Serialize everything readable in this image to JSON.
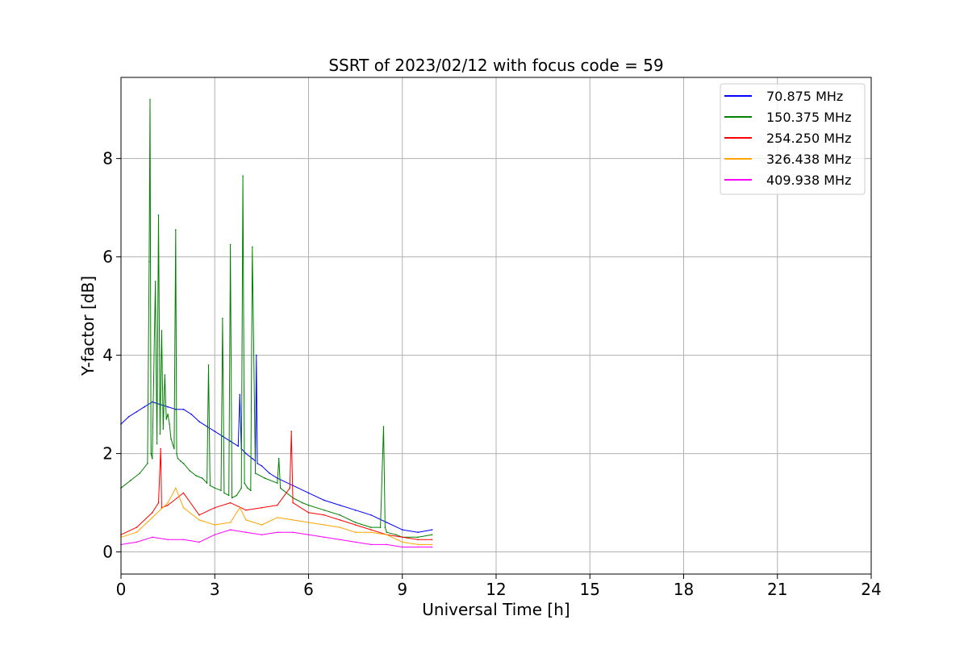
{
  "chart_data": {
    "type": "line",
    "title": "SSRT of 2023/02/12 with focus code = 59",
    "xlabel": "Universal Time [h]",
    "ylabel": "Y-factor [dB]",
    "xlim": [
      0,
      24
    ],
    "ylim": [
      -0.45,
      9.65
    ],
    "xticks": [
      0,
      3,
      6,
      9,
      12,
      15,
      18,
      21,
      24
    ],
    "yticks": [
      0,
      2,
      4,
      6,
      8
    ],
    "grid": true,
    "legend_position": "top-right",
    "series": [
      {
        "name": " 70.875 MHz",
        "color": "#0000ff",
        "x": [
          0,
          0.25,
          0.5,
          0.75,
          1.0,
          1.25,
          1.5,
          1.75,
          2.0,
          2.25,
          2.5,
          2.75,
          3.0,
          3.25,
          3.5,
          3.75,
          3.8,
          3.85,
          4.0,
          4.2,
          4.3,
          4.33,
          4.36,
          4.5,
          4.75,
          5.0,
          5.5,
          6.0,
          6.5,
          7.0,
          7.5,
          8.0,
          8.5,
          9.0,
          9.5,
          9.95
        ],
        "y": [
          2.6,
          2.75,
          2.85,
          2.95,
          3.05,
          3.0,
          2.95,
          2.9,
          2.9,
          2.8,
          2.65,
          2.55,
          2.45,
          2.35,
          2.25,
          2.15,
          3.2,
          2.1,
          2.0,
          1.9,
          1.85,
          4.0,
          1.8,
          1.75,
          1.6,
          1.5,
          1.35,
          1.2,
          1.05,
          0.95,
          0.85,
          0.75,
          0.6,
          0.45,
          0.4,
          0.45
        ]
      },
      {
        "name": "150.375 MHz",
        "color": "#008000",
        "x": [
          0,
          0.3,
          0.6,
          0.85,
          0.9,
          0.93,
          0.96,
          1.0,
          1.1,
          1.15,
          1.2,
          1.25,
          1.3,
          1.35,
          1.4,
          1.45,
          1.5,
          1.55,
          1.6,
          1.7,
          1.75,
          1.78,
          1.82,
          1.9,
          2.0,
          2.2,
          2.4,
          2.6,
          2.75,
          2.8,
          2.85,
          3.0,
          3.2,
          3.25,
          3.3,
          3.45,
          3.5,
          3.55,
          3.7,
          3.85,
          3.9,
          3.95,
          4.05,
          4.15,
          4.2,
          4.3,
          4.6,
          5.0,
          5.05,
          5.1,
          5.5,
          5.8,
          6.0,
          6.5,
          7.0,
          7.5,
          8.0,
          8.3,
          8.4,
          8.45,
          8.5,
          8.8,
          9.0,
          9.5,
          9.95
        ],
        "y": [
          1.3,
          1.45,
          1.6,
          1.8,
          5.9,
          9.2,
          2.0,
          1.9,
          5.5,
          2.2,
          6.85,
          2.4,
          4.5,
          2.5,
          3.6,
          2.7,
          2.8,
          2.6,
          2.3,
          2.1,
          6.55,
          2.0,
          1.9,
          1.85,
          1.8,
          1.65,
          1.55,
          1.5,
          1.4,
          3.8,
          1.35,
          1.3,
          1.25,
          4.75,
          1.2,
          1.15,
          6.25,
          1.1,
          1.15,
          1.3,
          7.65,
          1.4,
          1.3,
          1.25,
          6.2,
          1.6,
          1.5,
          1.4,
          1.9,
          1.3,
          1.1,
          1.0,
          0.95,
          0.85,
          0.75,
          0.6,
          0.5,
          0.5,
          2.55,
          0.5,
          0.4,
          0.35,
          0.3,
          0.3,
          0.35
        ]
      },
      {
        "name": "254.250 MHz",
        "color": "#ff0000",
        "x": [
          0,
          0.5,
          1.0,
          1.2,
          1.27,
          1.3,
          1.5,
          2.0,
          2.5,
          3.0,
          3.5,
          4.0,
          4.5,
          5.0,
          5.4,
          5.45,
          5.5,
          6.0,
          6.5,
          7.0,
          7.5,
          8.0,
          8.5,
          9.0,
          9.5,
          9.95
        ],
        "y": [
          0.35,
          0.5,
          0.8,
          1.0,
          2.1,
          0.9,
          0.95,
          1.2,
          0.75,
          0.9,
          1.0,
          0.85,
          0.9,
          0.95,
          1.3,
          2.45,
          1.0,
          0.8,
          0.75,
          0.65,
          0.55,
          0.45,
          0.35,
          0.3,
          0.25,
          0.25
        ]
      },
      {
        "name": "326.438 MHz",
        "color": "#ffa500",
        "x": [
          0,
          0.5,
          1.0,
          1.5,
          1.75,
          2.0,
          2.5,
          3.0,
          3.5,
          3.8,
          4.0,
          4.5,
          5.0,
          5.5,
          6.0,
          6.5,
          7.0,
          7.5,
          8.0,
          8.5,
          9.0,
          9.5,
          9.95
        ],
        "y": [
          0.3,
          0.4,
          0.7,
          1.0,
          1.3,
          0.9,
          0.65,
          0.55,
          0.6,
          0.9,
          0.65,
          0.55,
          0.7,
          0.65,
          0.6,
          0.55,
          0.5,
          0.4,
          0.4,
          0.35,
          0.2,
          0.15,
          0.15
        ]
      },
      {
        "name": "409.938 MHz",
        "color": "#ff00ff",
        "x": [
          0,
          0.5,
          1.0,
          1.5,
          2.0,
          2.5,
          3.0,
          3.5,
          4.0,
          4.5,
          5.0,
          5.5,
          6.0,
          6.5,
          7.0,
          7.5,
          8.0,
          8.5,
          9.0,
          9.5,
          9.95
        ],
        "y": [
          0.15,
          0.2,
          0.3,
          0.25,
          0.25,
          0.2,
          0.35,
          0.45,
          0.4,
          0.35,
          0.4,
          0.4,
          0.35,
          0.3,
          0.25,
          0.2,
          0.15,
          0.15,
          0.1,
          0.1,
          0.1
        ]
      }
    ]
  }
}
